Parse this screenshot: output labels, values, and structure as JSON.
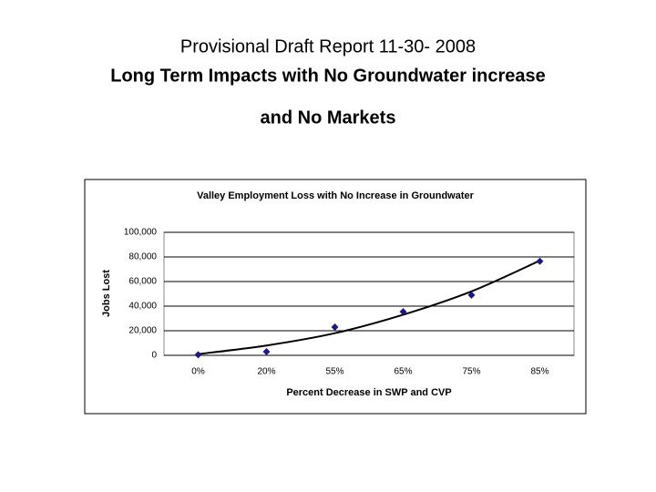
{
  "slide": {
    "title": "Provisional Draft Report 11-30- 2008",
    "subtitle_lines": [
      "Long Term Impacts with No Groundwater increase",
      "and No Markets"
    ]
  },
  "chart_data": {
    "type": "scatter",
    "title": "Valley Employment Loss with No Increase in Groundwater",
    "x_label": "Percent Decrease in SWP and CVP",
    "y_label": "Jobs Lost",
    "categories": [
      "0%",
      "20%",
      "55%",
      "65%",
      "75%",
      "85%"
    ],
    "series": [
      {
        "color": "#1a1a80",
        "marker": "diamond",
        "values": [
          500,
          3000,
          23000,
          35500,
          49000,
          76500
        ]
      },
      {
        "color": "#000000",
        "marker": "smooth-line",
        "values": [
          1000,
          8000,
          18000,
          33000,
          52000,
          77000
        ]
      }
    ],
    "ylim": [
      0,
      100000
    ],
    "yticks": [
      {
        "value": 0,
        "label": "0"
      },
      {
        "value": 20000,
        "label": "20,000"
      },
      {
        "value": 40000,
        "label": "40,000"
      },
      {
        "value": 60000,
        "label": "60,000"
      },
      {
        "value": 80000,
        "label": "80,000"
      },
      {
        "value": 100000,
        "label": "100,000"
      }
    ],
    "grid": true
  }
}
